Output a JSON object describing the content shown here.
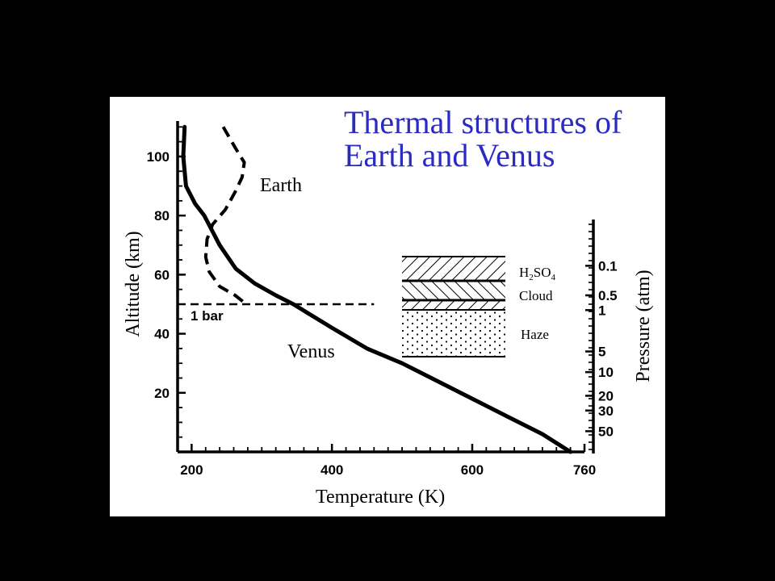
{
  "chart_data": {
    "type": "line",
    "title": "Thermal structures of Earth and Venus",
    "title_lines": [
      "Thermal structures of",
      "Earth and Venus"
    ],
    "title_color": "#2b2bc0",
    "xlabel": "Temperature (K)",
    "ylabel": "Altitude (km)",
    "y2label": "Pressure (atm)",
    "xlim": [
      180,
      760
    ],
    "ylim": [
      0,
      112
    ],
    "x_ticks": [
      {
        "v": 200,
        "label": "200"
      },
      {
        "v": 400,
        "label": "400"
      },
      {
        "v": 600,
        "label": "600"
      },
      {
        "v": 760,
        "label": "760"
      }
    ],
    "y_ticks": [
      {
        "v": 20,
        "label": "20"
      },
      {
        "v": 40,
        "label": "40"
      },
      {
        "v": 60,
        "label": "60"
      },
      {
        "v": 80,
        "label": "80"
      },
      {
        "v": 100,
        "label": "100"
      }
    ],
    "pressure_ticks": [
      {
        "alt": 63,
        "label": "0.1"
      },
      {
        "alt": 53,
        "label": "0.5"
      },
      {
        "alt": 48,
        "label": "1"
      },
      {
        "alt": 34,
        "label": "5"
      },
      {
        "alt": 27,
        "label": "10"
      },
      {
        "alt": 19,
        "label": "20"
      },
      {
        "alt": 14,
        "label": "30"
      },
      {
        "alt": 7,
        "label": "50"
      }
    ],
    "series": [
      {
        "name": "Venus",
        "style": "solid",
        "points": [
          [
            190,
            110
          ],
          [
            188,
            100
          ],
          [
            192,
            90
          ],
          [
            205,
            84
          ],
          [
            218,
            80
          ],
          [
            240,
            70
          ],
          [
            263,
            62
          ],
          [
            290,
            57
          ],
          [
            320,
            53
          ],
          [
            345,
            50
          ],
          [
            400,
            42
          ],
          [
            450,
            35
          ],
          [
            500,
            30
          ],
          [
            550,
            24
          ],
          [
            600,
            18
          ],
          [
            650,
            12
          ],
          [
            700,
            6
          ],
          [
            740,
            0
          ]
        ]
      },
      {
        "name": "Earth",
        "style": "dashed",
        "points": [
          [
            245,
            110
          ],
          [
            262,
            103
          ],
          [
            275,
            98
          ],
          [
            272,
            93
          ],
          [
            262,
            88
          ],
          [
            248,
            82
          ],
          [
            230,
            77
          ],
          [
            222,
            72
          ],
          [
            220,
            66
          ],
          [
            225,
            61
          ],
          [
            240,
            56
          ],
          [
            262,
            53
          ],
          [
            278,
            50
          ]
        ]
      }
    ],
    "reference_lines": [
      {
        "label": "1 bar",
        "y": 50,
        "x_range": [
          180,
          460
        ]
      }
    ],
    "cloud_layers": [
      {
        "label": "H2SO4 Cloud",
        "alt_range": [
          48,
          65
        ],
        "pattern": "hatched"
      },
      {
        "label": "Haze",
        "alt_range": [
          32,
          48
        ],
        "pattern": "dotted"
      }
    ],
    "annotations": [
      "Earth",
      "Venus",
      "1 bar",
      "H2SO4",
      "Cloud",
      "Haze"
    ]
  },
  "labels": {
    "earth": "Earth",
    "venus": "Venus",
    "bar": "1 bar",
    "cloud_formula_main": "H",
    "cloud_sub1": "2",
    "cloud_formula_mid": "SO",
    "cloud_sub2": "4",
    "cloud_word": "Cloud",
    "haze": "Haze"
  }
}
